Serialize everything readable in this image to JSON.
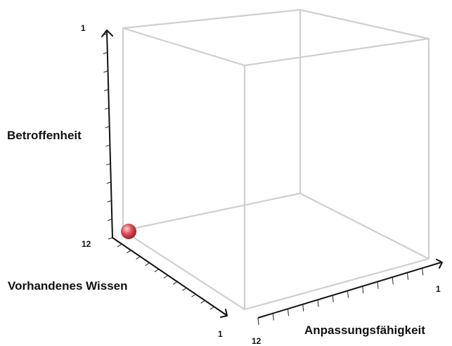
{
  "chart_data": {
    "type": "scatter",
    "title": "",
    "axes": {
      "vertical": {
        "label": "Betroffenheit",
        "range": [
          12,
          1
        ],
        "tick_labels": [
          "12",
          "1"
        ]
      },
      "left_depth": {
        "label": "Vorhandenes Wissen",
        "range": [
          12,
          1
        ],
        "tick_labels": [
          "1"
        ]
      },
      "right_depth": {
        "label": "Anpassungsfähigkeit",
        "range": [
          12,
          1
        ],
        "tick_labels": [
          "12",
          "1"
        ]
      }
    },
    "points": [
      {
        "betroffenheit": 12,
        "vorhandenes_wissen": 12,
        "anpassungsfaehigkeit": 12,
        "color": "#e0505a"
      }
    ],
    "colors": {
      "point": "#e0505a",
      "cube": "#cfcfcf",
      "axis": "#111111"
    },
    "grid": false
  }
}
